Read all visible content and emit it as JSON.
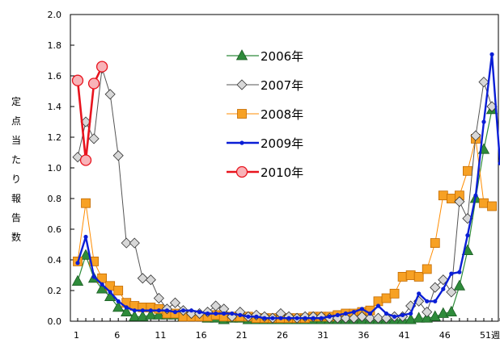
{
  "chart_data": {
    "type": "line",
    "ylabel": "定点当たり報告数",
    "ylim": [
      0,
      2.0
    ],
    "yticks": [
      "0.0",
      "0.2",
      "0.4",
      "0.6",
      "0.8",
      "1.0",
      "1.2",
      "1.4",
      "1.6",
      "1.8",
      "2.0"
    ],
    "xlim": [
      1,
      53
    ],
    "xtick_values": [
      1,
      6,
      11,
      16,
      21,
      26,
      31,
      36,
      41,
      46,
      51
    ],
    "xtick_labels": [
      "1",
      "6",
      "11",
      "16",
      "21",
      "26",
      "31",
      "36",
      "41",
      "46",
      "51週"
    ],
    "grid": false,
    "legend_position": "top-center",
    "series": [
      {
        "name": "2006年",
        "color": "#2e8b3a",
        "marker": "triangle",
        "x": [
          1,
          2,
          3,
          4,
          5,
          6,
          7,
          8,
          9,
          10,
          11,
          12,
          13,
          14,
          15,
          16,
          17,
          18,
          19,
          20,
          21,
          22,
          23,
          24,
          25,
          26,
          27,
          28,
          29,
          30,
          31,
          32,
          33,
          34,
          35,
          36,
          37,
          38,
          39,
          40,
          41,
          42,
          43,
          44,
          45,
          46,
          47,
          48,
          49,
          50,
          51,
          52
        ],
        "values": [
          0.26,
          0.43,
          0.28,
          0.21,
          0.16,
          0.09,
          0.06,
          0.03,
          0.03,
          0.04,
          0.04,
          0.04,
          0.04,
          0.03,
          0.03,
          0.03,
          0.02,
          0.02,
          0.01,
          0.02,
          0.02,
          0.01,
          0.01,
          0.01,
          0.01,
          0.01,
          0.01,
          0.01,
          0.01,
          0.01,
          0.01,
          0.01,
          0.01,
          0.01,
          0.01,
          0.01,
          0.01,
          0.01,
          0.01,
          0.01,
          0.01,
          0.01,
          0.02,
          0.02,
          0.03,
          0.05,
          0.06,
          0.23,
          0.46,
          0.8,
          1.12,
          1.38
        ]
      },
      {
        "name": "2007年",
        "color": "#555555",
        "marker": "diamond",
        "x": [
          1,
          2,
          3,
          4,
          5,
          6,
          7,
          8,
          9,
          10,
          11,
          12,
          13,
          14,
          15,
          16,
          17,
          18,
          19,
          20,
          21,
          22,
          23,
          24,
          25,
          26,
          27,
          28,
          29,
          30,
          31,
          32,
          33,
          34,
          35,
          36,
          37,
          38,
          39,
          40,
          41,
          42,
          43,
          44,
          45,
          46,
          47,
          48,
          49,
          50,
          51,
          52
        ],
        "values": [
          1.07,
          1.3,
          1.19,
          1.65,
          1.48,
          1.08,
          0.51,
          0.51,
          0.28,
          0.27,
          0.15,
          0.08,
          0.12,
          0.07,
          0.05,
          0.05,
          0.06,
          0.1,
          0.08,
          0.03,
          0.06,
          0.03,
          0.04,
          0.03,
          0.02,
          0.05,
          0.03,
          0.02,
          0.03,
          0.03,
          0.03,
          0.02,
          0.02,
          0.02,
          0.02,
          0.03,
          0.02,
          0.02,
          0.02,
          0.03,
          0.03,
          0.1,
          0.13,
          0.06,
          0.22,
          0.27,
          0.19,
          0.78,
          0.67,
          1.21,
          1.56,
          1.4
        ]
      },
      {
        "name": "2008年",
        "color": "#ff8c00",
        "marker": "square",
        "x": [
          1,
          2,
          3,
          4,
          5,
          6,
          7,
          8,
          9,
          10,
          11,
          12,
          13,
          14,
          15,
          16,
          17,
          18,
          19,
          20,
          21,
          22,
          23,
          24,
          25,
          26,
          27,
          28,
          29,
          30,
          31,
          32,
          33,
          34,
          35,
          36,
          37,
          38,
          39,
          40,
          41,
          42,
          43,
          44,
          45,
          46,
          47,
          48,
          49,
          50,
          51,
          52
        ],
        "values": [
          0.39,
          0.77,
          0.39,
          0.28,
          0.23,
          0.2,
          0.12,
          0.1,
          0.09,
          0.09,
          0.08,
          0.05,
          0.05,
          0.03,
          0.03,
          0.03,
          0.03,
          0.04,
          0.03,
          0.03,
          0.03,
          0.03,
          0.02,
          0.02,
          0.02,
          0.02,
          0.02,
          0.02,
          0.02,
          0.03,
          0.03,
          0.03,
          0.04,
          0.05,
          0.05,
          0.06,
          0.07,
          0.13,
          0.15,
          0.18,
          0.29,
          0.3,
          0.29,
          0.34,
          0.51,
          0.82,
          0.8,
          0.82,
          0.98,
          1.19,
          0.77,
          0.75
        ]
      },
      {
        "name": "2009年",
        "color": "#0a1ed6",
        "marker": "dot",
        "x": [
          1,
          2,
          3,
          4,
          5,
          6,
          7,
          8,
          9,
          10,
          11,
          12,
          13,
          14,
          15,
          16,
          17,
          18,
          19,
          20,
          21,
          22,
          23,
          24,
          25,
          26,
          27,
          28,
          29,
          30,
          31,
          32,
          33,
          34,
          35,
          36,
          37,
          38,
          39,
          40,
          41,
          42,
          43,
          44,
          45,
          46,
          47,
          48,
          49,
          50,
          51,
          52,
          53
        ],
        "values": [
          0.38,
          0.55,
          0.29,
          0.24,
          0.19,
          0.13,
          0.09,
          0.07,
          0.07,
          0.07,
          0.07,
          0.07,
          0.06,
          0.07,
          0.07,
          0.06,
          0.05,
          0.05,
          0.05,
          0.05,
          0.04,
          0.03,
          0.03,
          0.02,
          0.02,
          0.02,
          0.02,
          0.02,
          0.02,
          0.02,
          0.02,
          0.03,
          0.04,
          0.05,
          0.06,
          0.08,
          0.05,
          0.1,
          0.05,
          0.03,
          0.04,
          0.05,
          0.18,
          0.13,
          0.13,
          0.21,
          0.31,
          0.32,
          0.56,
          0.82,
          1.3,
          1.74,
          1.03
        ]
      },
      {
        "name": "2010年",
        "color": "#e8141e",
        "marker": "circle",
        "x": [
          1,
          2,
          3,
          4
        ],
        "values": [
          1.57,
          1.05,
          1.55,
          1.66
        ]
      }
    ]
  }
}
